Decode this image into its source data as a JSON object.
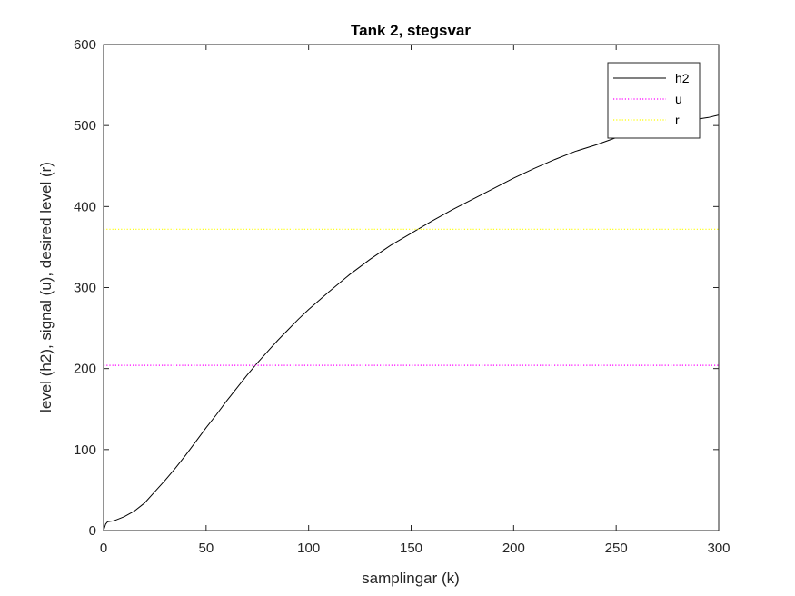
{
  "chart_data": {
    "type": "line",
    "title": "Tank 2, stegsvar",
    "xlabel": "samplingar (k)",
    "ylabel": "level (h2), signal (u), desired level (r)",
    "xlim": [
      0,
      300
    ],
    "ylim": [
      0,
      600
    ],
    "xticks": [
      0,
      50,
      100,
      150,
      200,
      250,
      300
    ],
    "yticks": [
      0,
      100,
      200,
      300,
      400,
      500,
      600
    ],
    "grid": false,
    "legend_position": "top-right",
    "series": [
      {
        "name": "h2",
        "color": "#000000",
        "style": "solid",
        "x": [
          0,
          1,
          2,
          5,
          10,
          15,
          20,
          25,
          30,
          35,
          40,
          45,
          50,
          55,
          60,
          65,
          70,
          75,
          80,
          85,
          90,
          95,
          100,
          110,
          120,
          130,
          140,
          150,
          160,
          170,
          180,
          190,
          200,
          210,
          220,
          230,
          240,
          250,
          260,
          270,
          280,
          290,
          295,
          300
        ],
        "y": [
          0,
          8,
          11,
          12,
          17,
          24,
          34,
          48,
          62,
          77,
          93,
          110,
          127,
          143,
          160,
          176,
          192,
          207,
          221,
          235,
          248,
          261,
          273,
          295,
          316,
          335,
          352,
          367,
          382,
          396,
          409,
          422,
          435,
          447,
          458,
          468,
          476,
          485,
          492,
          498,
          503,
          508,
          510,
          513
        ]
      },
      {
        "name": "u",
        "color": "#ff00ff",
        "style": "dotted",
        "x": [
          0,
          300
        ],
        "y": [
          204,
          204
        ]
      },
      {
        "name": "r",
        "color": "#ffff00",
        "style": "dotted",
        "x": [
          0,
          300
        ],
        "y": [
          372,
          372
        ]
      }
    ]
  }
}
